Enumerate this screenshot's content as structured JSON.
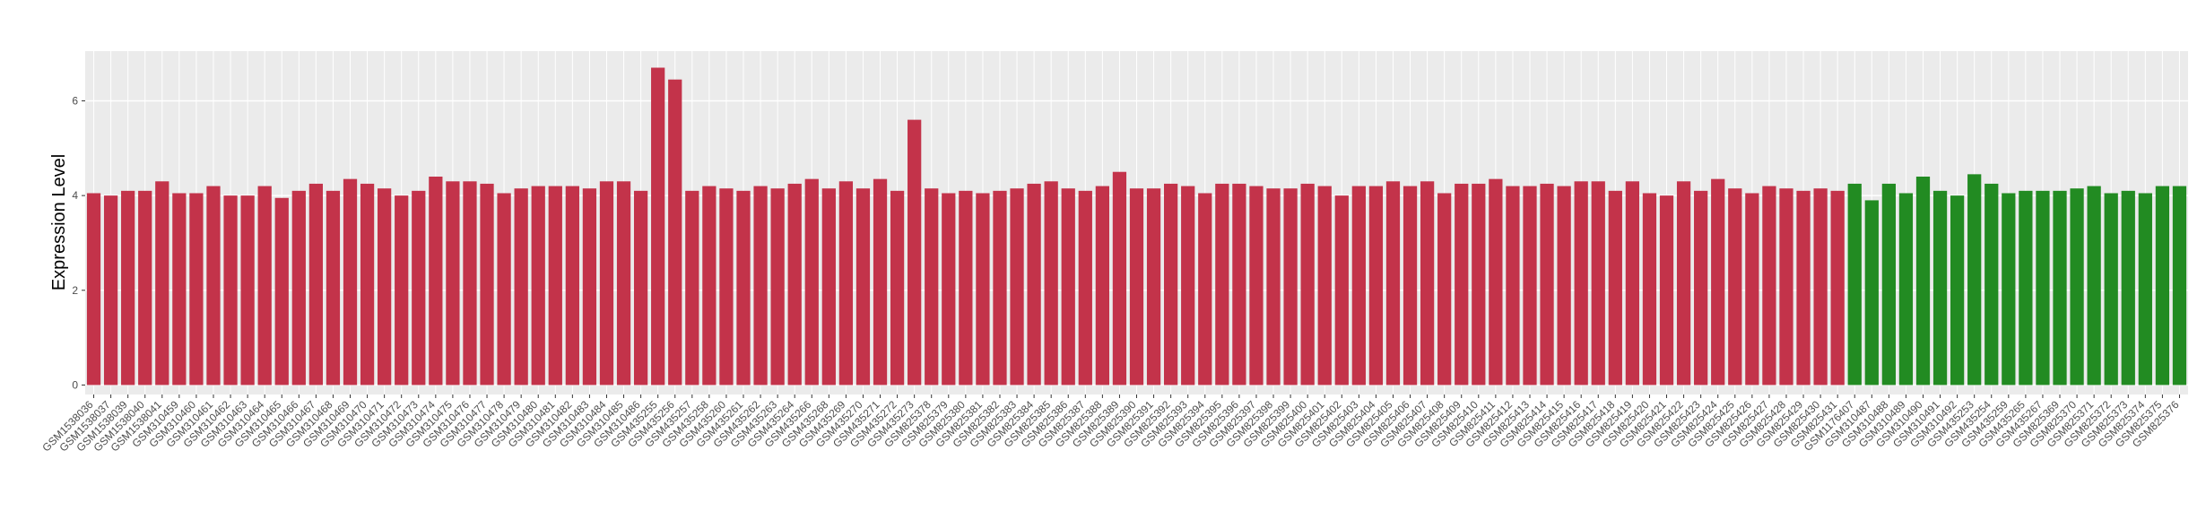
{
  "chart_data": {
    "type": "bar",
    "y_label": "Expression Level",
    "categories": [
      "GSM1538036",
      "GSM1538037",
      "GSM1538039",
      "GSM1538040",
      "GSM1538041",
      "GSM310459",
      "GSM310460",
      "GSM310461",
      "GSM310462",
      "GSM310463",
      "GSM310464",
      "GSM310465",
      "GSM310466",
      "GSM310467",
      "GSM310468",
      "GSM310469",
      "GSM310470",
      "GSM310471",
      "GSM310472",
      "GSM310473",
      "GSM310474",
      "GSM310475",
      "GSM310476",
      "GSM310477",
      "GSM310478",
      "GSM310479",
      "GSM310480",
      "GSM310481",
      "GSM310482",
      "GSM310483",
      "GSM310484",
      "GSM310485",
      "GSM310486",
      "GSM435255",
      "GSM435256",
      "GSM435257",
      "GSM435258",
      "GSM435260",
      "GSM435261",
      "GSM435262",
      "GSM435263",
      "GSM435264",
      "GSM435266",
      "GSM435268",
      "GSM435269",
      "GSM435270",
      "GSM435271",
      "GSM435272",
      "GSM435273",
      "GSM825378",
      "GSM825379",
      "GSM825380",
      "GSM825381",
      "GSM825382",
      "GSM825383",
      "GSM825384",
      "GSM825385",
      "GSM825386",
      "GSM825387",
      "GSM825388",
      "GSM825389",
      "GSM825390",
      "GSM825391",
      "GSM825392",
      "GSM825393",
      "GSM825394",
      "GSM825395",
      "GSM825396",
      "GSM825397",
      "GSM825398",
      "GSM825399",
      "GSM825400",
      "GSM825401",
      "GSM825402",
      "GSM825403",
      "GSM825404",
      "GSM825405",
      "GSM825406",
      "GSM825407",
      "GSM825408",
      "GSM825409",
      "GSM825410",
      "GSM825411",
      "GSM825412",
      "GSM825413",
      "GSM825414",
      "GSM825415",
      "GSM825416",
      "GSM825417",
      "GSM825418",
      "GSM825419",
      "GSM825420",
      "GSM825421",
      "GSM825422",
      "GSM825423",
      "GSM825424",
      "GSM825425",
      "GSM825426",
      "GSM825427",
      "GSM825428",
      "GSM825429",
      "GSM825430",
      "GSM825431",
      "GSM1176407",
      "GSM310487",
      "GSM310488",
      "GSM310489",
      "GSM310490",
      "GSM310491",
      "GSM310492",
      "GSM435253",
      "GSM435254",
      "GSM435259",
      "GSM435265",
      "GSM435267",
      "GSM825369",
      "GSM825370",
      "GSM825371",
      "GSM825372",
      "GSM825373",
      "GSM825374",
      "GSM825375",
      "GSM825376"
    ],
    "values": [
      4.05,
      4.0,
      4.1,
      4.1,
      4.3,
      4.05,
      4.05,
      4.2,
      4.0,
      4.0,
      4.2,
      3.95,
      4.1,
      4.25,
      4.1,
      4.35,
      4.25,
      4.15,
      4.0,
      4.1,
      4.4,
      4.3,
      4.3,
      4.25,
      4.05,
      4.15,
      4.2,
      4.2,
      4.2,
      4.15,
      4.3,
      4.3,
      4.1,
      6.7,
      6.45,
      4.1,
      4.2,
      4.15,
      4.1,
      4.2,
      4.15,
      4.25,
      4.35,
      4.15,
      4.3,
      4.15,
      4.35,
      4.1,
      5.6,
      4.15,
      4.05,
      4.1,
      4.05,
      4.1,
      4.15,
      4.25,
      4.3,
      4.15,
      4.1,
      4.2,
      4.5,
      4.15,
      4.15,
      4.25,
      4.2,
      4.05,
      4.25,
      4.25,
      4.2,
      4.15,
      4.15,
      4.25,
      4.2,
      4.0,
      4.2,
      4.2,
      4.3,
      4.2,
      4.3,
      4.05,
      4.25,
      4.25,
      4.35,
      4.2,
      4.2,
      4.25,
      4.2,
      4.3,
      4.3,
      4.1,
      4.3,
      4.05,
      4.0,
      4.3,
      4.1,
      4.35,
      4.15,
      4.05,
      4.2,
      4.15,
      4.1,
      4.15,
      4.1,
      4.25,
      3.9,
      4.25,
      4.05,
      4.4,
      4.1,
      4.0,
      4.45,
      4.25,
      4.05,
      4.1,
      4.1,
      4.1,
      4.15,
      4.2,
      4.05,
      4.1,
      4.05,
      4.2,
      4.2
    ],
    "colors": [
      "#c3334a",
      "#c3334a",
      "#c3334a",
      "#c3334a",
      "#c3334a",
      "#c3334a",
      "#c3334a",
      "#c3334a",
      "#c3334a",
      "#c3334a",
      "#c3334a",
      "#c3334a",
      "#c3334a",
      "#c3334a",
      "#c3334a",
      "#c3334a",
      "#c3334a",
      "#c3334a",
      "#c3334a",
      "#c3334a",
      "#c3334a",
      "#c3334a",
      "#c3334a",
      "#c3334a",
      "#c3334a",
      "#c3334a",
      "#c3334a",
      "#c3334a",
      "#c3334a",
      "#c3334a",
      "#c3334a",
      "#c3334a",
      "#c3334a",
      "#c3334a",
      "#c3334a",
      "#c3334a",
      "#c3334a",
      "#c3334a",
      "#c3334a",
      "#c3334a",
      "#c3334a",
      "#c3334a",
      "#c3334a",
      "#c3334a",
      "#c3334a",
      "#c3334a",
      "#c3334a",
      "#c3334a",
      "#c3334a",
      "#c3334a",
      "#c3334a",
      "#c3334a",
      "#c3334a",
      "#c3334a",
      "#c3334a",
      "#c3334a",
      "#c3334a",
      "#c3334a",
      "#c3334a",
      "#c3334a",
      "#c3334a",
      "#c3334a",
      "#c3334a",
      "#c3334a",
      "#c3334a",
      "#c3334a",
      "#c3334a",
      "#c3334a",
      "#c3334a",
      "#c3334a",
      "#c3334a",
      "#c3334a",
      "#c3334a",
      "#c3334a",
      "#c3334a",
      "#c3334a",
      "#c3334a",
      "#c3334a",
      "#c3334a",
      "#c3334a",
      "#c3334a",
      "#c3334a",
      "#c3334a",
      "#c3334a",
      "#c3334a",
      "#c3334a",
      "#c3334a",
      "#c3334a",
      "#c3334a",
      "#c3334a",
      "#c3334a",
      "#c3334a",
      "#c3334a",
      "#c3334a",
      "#c3334a",
      "#c3334a",
      "#c3334a",
      "#c3334a",
      "#c3334a",
      "#c3334a",
      "#c3334a",
      "#c3334a",
      "#c3334a",
      "#228b22",
      "#228b22",
      "#228b22",
      "#228b22",
      "#228b22",
      "#228b22",
      "#228b22",
      "#228b22",
      "#228b22",
      "#228b22",
      "#228b22",
      "#228b22",
      "#228b22",
      "#228b22",
      "#228b22",
      "#228b22",
      "#228b22",
      "#228b22",
      "#228b22",
      "#228b22"
    ],
    "ylim": [
      -0.2,
      7.05
    ],
    "yticks": [
      0,
      2,
      4,
      6
    ],
    "grid": true
  }
}
